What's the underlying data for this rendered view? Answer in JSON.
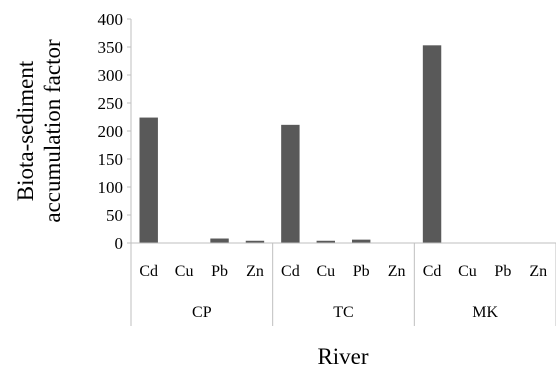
{
  "chart_data": {
    "type": "bar",
    "title": "",
    "ylabel_lines": [
      "Biota-sediment",
      "accumulation factor"
    ],
    "xlabel": "River",
    "ylim": [
      0,
      400
    ],
    "yticks": [
      0,
      50,
      100,
      150,
      200,
      250,
      300,
      350,
      400
    ],
    "grid": false,
    "legend": "none",
    "bar_color": "#595959",
    "groups": [
      {
        "name": "CP",
        "categories": [
          "Cd",
          "Cu",
          "Pb",
          "Zn"
        ],
        "values": [
          224,
          0,
          8,
          4
        ]
      },
      {
        "name": "TC",
        "categories": [
          "Cd",
          "Cu",
          "Pb",
          "Zn"
        ],
        "values": [
          211,
          4,
          6,
          0
        ]
      },
      {
        "name": "MK",
        "categories": [
          "Cd",
          "Cu",
          "Pb",
          "Zn"
        ],
        "values": [
          353,
          0,
          0,
          0
        ]
      }
    ]
  }
}
